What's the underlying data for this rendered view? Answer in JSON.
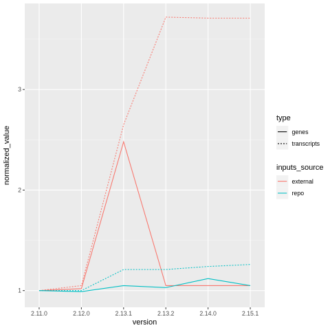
{
  "chart_data": {
    "type": "line",
    "title": "",
    "xlabel": "version",
    "ylabel": "normalized_value",
    "categories": [
      "2.11.0",
      "2.12.0",
      "2.13.1",
      "2.13.2",
      "2.14.0",
      "2.15.1"
    ],
    "y_ticks": [
      1,
      2,
      3
    ],
    "ylim": [
      0.97,
      3.72
    ],
    "grid": true,
    "legend_position": "right",
    "legends": [
      {
        "title": "type",
        "entries": [
          {
            "label": "genes",
            "linetype": "solid"
          },
          {
            "label": "transcripts",
            "linetype": "dotted"
          }
        ]
      },
      {
        "title": "inputs_source",
        "entries": [
          {
            "label": "external",
            "color": "#F8766D"
          },
          {
            "label": "repo",
            "color": "#00BFC4"
          }
        ]
      }
    ],
    "series": [
      {
        "inputs_source": "external",
        "type": "genes",
        "color": "#F8766D",
        "linetype": "solid",
        "values": [
          1.0,
          1.02,
          2.48,
          1.05,
          1.05,
          1.05
        ]
      },
      {
        "inputs_source": "external",
        "type": "transcripts",
        "color": "#F8766D",
        "linetype": "dotted",
        "values": [
          1.0,
          1.05,
          2.65,
          3.72,
          3.71,
          3.71
        ]
      },
      {
        "inputs_source": "repo",
        "type": "genes",
        "color": "#00BFC4",
        "linetype": "solid",
        "values": [
          1.0,
          0.99,
          1.05,
          1.03,
          1.12,
          1.05
        ]
      },
      {
        "inputs_source": "repo",
        "type": "transcripts",
        "color": "#00BFC4",
        "linetype": "dotted",
        "values": [
          1.0,
          1.0,
          1.21,
          1.21,
          1.24,
          1.26
        ]
      }
    ]
  }
}
